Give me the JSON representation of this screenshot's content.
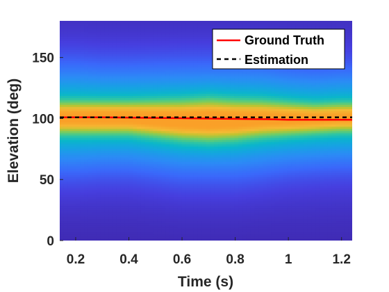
{
  "chart_data": {
    "type": "heatmap",
    "title": "",
    "xlabel": "Time (s)",
    "ylabel": "Elevation (deg)",
    "xlim": [
      0.14,
      1.24
    ],
    "ylim": [
      0,
      180
    ],
    "xticks": [
      0.2,
      0.4,
      0.6,
      0.8,
      1.0,
      1.2
    ],
    "xtick_labels": [
      "0.2",
      "0.4",
      "0.6",
      "0.8",
      "1",
      "1.2"
    ],
    "yticks": [
      0,
      50,
      100,
      150
    ],
    "ytick_labels": [
      "0",
      "50",
      "100",
      "150"
    ],
    "grid": false,
    "colormap": "parula",
    "heatmap": {
      "description_free": true,
      "time_knots": [
        0.14,
        0.2,
        0.3,
        0.4,
        0.5,
        0.6,
        0.7,
        0.8,
        0.9,
        1.0,
        1.1,
        1.2,
        1.24
      ],
      "peak_elevation": [
        101,
        101,
        101,
        101,
        100,
        99,
        99,
        99,
        100,
        100,
        100,
        101,
        101
      ],
      "peak_intensity": [
        0.88,
        0.89,
        0.9,
        0.9,
        0.92,
        0.94,
        0.95,
        0.93,
        0.9,
        0.88,
        0.86,
        0.84,
        0.84
      ],
      "core_width_deg": [
        9,
        9,
        9,
        9,
        10,
        11,
        12,
        11,
        10,
        9,
        8,
        8,
        8
      ],
      "spread_width_deg": [
        27,
        27,
        26,
        26,
        27,
        28,
        28,
        28,
        27,
        25,
        24,
        24,
        24
      ],
      "skirt_width_deg": [
        55,
        55,
        55,
        55,
        55,
        55,
        55,
        55,
        55,
        55,
        55,
        55,
        55
      ]
    },
    "series": [
      {
        "name": "Ground Truth",
        "style": "solid",
        "color": "#ff0000",
        "x": [
          0.14,
          0.3,
          0.5,
          0.7,
          0.9,
          1.0,
          1.1,
          1.24
        ],
        "y": [
          101,
          101,
          100.5,
          100,
          99.5,
          99,
          99,
          99
        ]
      },
      {
        "name": "Estimation",
        "style": "dashed",
        "color": "#000000",
        "x": [
          0.14,
          0.3,
          0.5,
          0.7,
          0.9,
          1.1,
          1.24
        ],
        "y": [
          101,
          101,
          101,
          101,
          101,
          101,
          101
        ]
      }
    ],
    "legend": {
      "placement": "top-right",
      "entries": [
        "Ground Truth",
        "Estimation"
      ]
    }
  }
}
